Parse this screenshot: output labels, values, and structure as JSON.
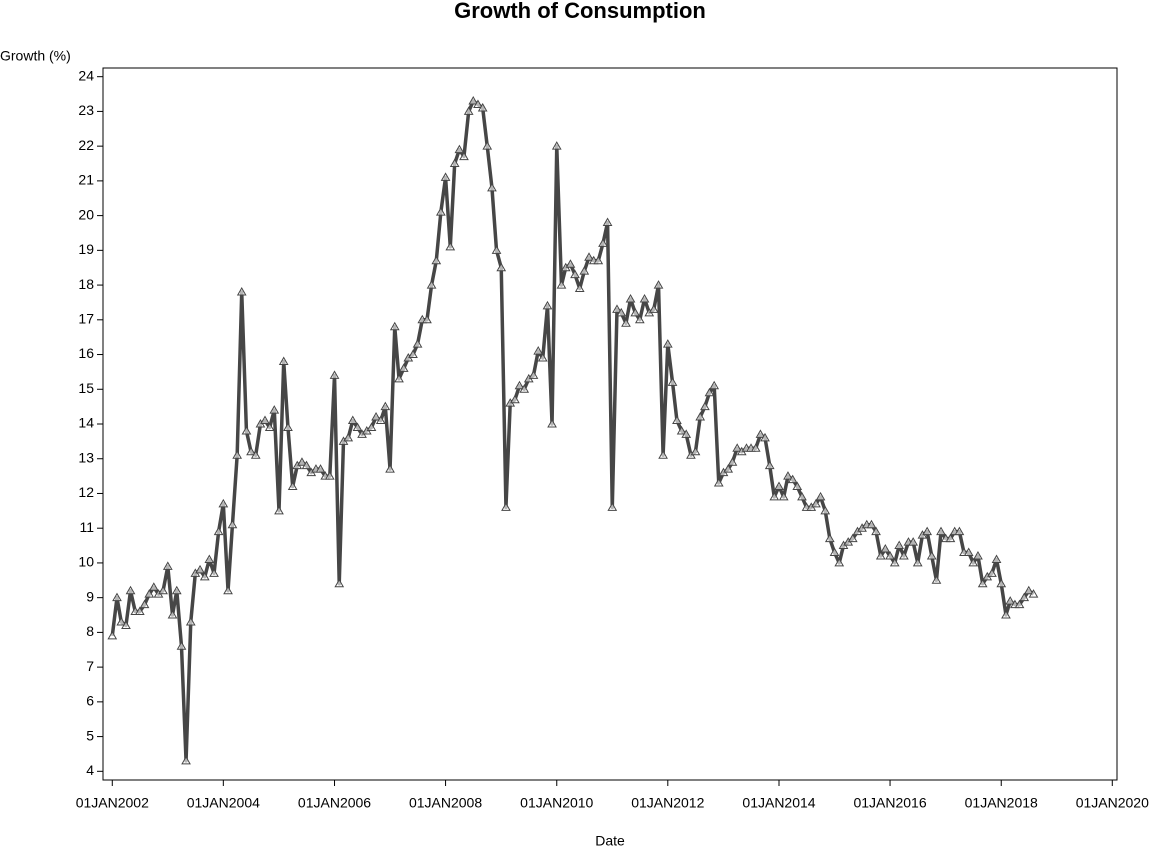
{
  "chart_data": {
    "type": "line",
    "title": "Growth of Consumption",
    "x_label": "Date",
    "y_label": "Growth (%)",
    "color": "#464646",
    "x": [
      "2002-01-01",
      "2002-02-01",
      "2002-03-01",
      "2002-04-01",
      "2002-05-01",
      "2002-06-01",
      "2002-07-01",
      "2002-08-01",
      "2002-09-01",
      "2002-10-01",
      "2002-11-01",
      "2002-12-01",
      "2003-01-01",
      "2003-02-01",
      "2003-03-01",
      "2003-04-01",
      "2003-05-01",
      "2003-06-01",
      "2003-07-01",
      "2003-08-01",
      "2003-09-01",
      "2003-10-01",
      "2003-11-01",
      "2003-12-01",
      "2004-01-01",
      "2004-02-01",
      "2004-03-01",
      "2004-04-01",
      "2004-05-01",
      "2004-06-01",
      "2004-07-01",
      "2004-08-01",
      "2004-09-01",
      "2004-10-01",
      "2004-11-01",
      "2004-12-01",
      "2005-01-01",
      "2005-02-01",
      "2005-03-01",
      "2005-04-01",
      "2005-05-01",
      "2005-06-01",
      "2005-07-01",
      "2005-08-01",
      "2005-09-01",
      "2005-10-01",
      "2005-11-01",
      "2005-12-01",
      "2006-01-01",
      "2006-02-01",
      "2006-03-01",
      "2006-04-01",
      "2006-05-01",
      "2006-06-01",
      "2006-07-01",
      "2006-08-01",
      "2006-09-01",
      "2006-10-01",
      "2006-11-01",
      "2006-12-01",
      "2007-01-01",
      "2007-02-01",
      "2007-03-01",
      "2007-04-01",
      "2007-05-01",
      "2007-06-01",
      "2007-07-01",
      "2007-08-01",
      "2007-09-01",
      "2007-10-01",
      "2007-11-01",
      "2007-12-01",
      "2008-01-01",
      "2008-02-01",
      "2008-03-01",
      "2008-04-01",
      "2008-05-01",
      "2008-06-01",
      "2008-07-01",
      "2008-08-01",
      "2008-09-01",
      "2008-10-01",
      "2008-11-01",
      "2008-12-01",
      "2009-01-01",
      "2009-02-01",
      "2009-03-01",
      "2009-04-01",
      "2009-05-01",
      "2009-06-01",
      "2009-07-01",
      "2009-08-01",
      "2009-09-01",
      "2009-10-01",
      "2009-11-01",
      "2009-12-01",
      "2010-01-01",
      "2010-02-01",
      "2010-03-01",
      "2010-04-01",
      "2010-05-01",
      "2010-06-01",
      "2010-07-01",
      "2010-08-01",
      "2010-09-01",
      "2010-10-01",
      "2010-11-01",
      "2010-12-01",
      "2011-01-01",
      "2011-02-01",
      "2011-03-01",
      "2011-04-01",
      "2011-05-01",
      "2011-06-01",
      "2011-07-01",
      "2011-08-01",
      "2011-09-01",
      "2011-10-01",
      "2011-11-01",
      "2011-12-01",
      "2012-01-01",
      "2012-02-01",
      "2012-03-01",
      "2012-04-01",
      "2012-05-01",
      "2012-06-01",
      "2012-07-01",
      "2012-08-01",
      "2012-09-01",
      "2012-10-01",
      "2012-11-01",
      "2012-12-01",
      "2013-01-01",
      "2013-02-01",
      "2013-03-01",
      "2013-04-01",
      "2013-05-01",
      "2013-06-01",
      "2013-07-01",
      "2013-08-01",
      "2013-09-01",
      "2013-10-01",
      "2013-11-01",
      "2013-12-01",
      "2014-01-01",
      "2014-02-01",
      "2014-03-01",
      "2014-04-01",
      "2014-05-01",
      "2014-06-01",
      "2014-07-01",
      "2014-08-01",
      "2014-09-01",
      "2014-10-01",
      "2014-11-01",
      "2014-12-01",
      "2015-01-01",
      "2015-02-01",
      "2015-03-01",
      "2015-04-01",
      "2015-05-01",
      "2015-06-01",
      "2015-07-01",
      "2015-08-01",
      "2015-09-01",
      "2015-10-01",
      "2015-11-01",
      "2015-12-01",
      "2016-01-01",
      "2016-02-01",
      "2016-03-01",
      "2016-04-01",
      "2016-05-01",
      "2016-06-01",
      "2016-07-01",
      "2016-08-01",
      "2016-09-01",
      "2016-10-01",
      "2016-11-01",
      "2016-12-01",
      "2017-01-01",
      "2017-02-01",
      "2017-03-01",
      "2017-04-01",
      "2017-05-01",
      "2017-06-01",
      "2017-07-01",
      "2017-08-01",
      "2017-09-01",
      "2017-10-01",
      "2017-11-01",
      "2017-12-01",
      "2018-01-01",
      "2018-02-01",
      "2018-03-01",
      "2018-04-01",
      "2018-05-01",
      "2018-06-01",
      "2018-07-01",
      "2018-08-01"
    ],
    "values": [
      7.9,
      9.0,
      8.3,
      8.2,
      9.2,
      8.6,
      8.6,
      8.8,
      9.1,
      9.3,
      9.1,
      9.2,
      9.9,
      8.5,
      9.2,
      7.6,
      4.3,
      8.3,
      9.7,
      9.8,
      9.6,
      10.1,
      9.7,
      10.9,
      11.7,
      9.2,
      11.1,
      13.1,
      17.8,
      13.8,
      13.2,
      13.1,
      14.0,
      14.1,
      13.9,
      14.4,
      11.5,
      15.8,
      13.9,
      12.2,
      12.8,
      12.9,
      12.8,
      12.6,
      12.7,
      12.7,
      12.5,
      12.5,
      15.4,
      9.4,
      13.5,
      13.6,
      14.1,
      13.9,
      13.7,
      13.8,
      13.9,
      14.2,
      14.1,
      14.5,
      12.7,
      16.8,
      15.3,
      15.6,
      15.9,
      16.0,
      16.3,
      17.0,
      17.0,
      18.0,
      18.7,
      20.1,
      21.1,
      19.1,
      21.5,
      21.9,
      21.7,
      23.0,
      23.3,
      23.2,
      23.1,
      22.0,
      20.8,
      19.0,
      18.5,
      11.6,
      14.6,
      14.7,
      15.1,
      15.0,
      15.3,
      15.4,
      16.1,
      15.9,
      17.4,
      14.0,
      22.0,
      18.0,
      18.5,
      18.6,
      18.3,
      17.9,
      18.4,
      18.8,
      18.7,
      18.7,
      19.2,
      19.8,
      11.6,
      17.3,
      17.2,
      16.9,
      17.6,
      17.2,
      17.0,
      17.6,
      17.2,
      17.3,
      18.0,
      13.1,
      16.3,
      15.2,
      14.1,
      13.8,
      13.7,
      13.1,
      13.2,
      14.2,
      14.5,
      14.9,
      15.1,
      12.3,
      12.6,
      12.7,
      12.9,
      13.3,
      13.2,
      13.3,
      13.3,
      13.3,
      13.7,
      13.6,
      12.8,
      11.9,
      12.2,
      11.9,
      12.5,
      12.4,
      12.2,
      11.9,
      11.6,
      11.6,
      11.7,
      11.9,
      11.5,
      10.7,
      10.3,
      10.0,
      10.5,
      10.6,
      10.7,
      10.9,
      11.0,
      11.1,
      11.1,
      10.9,
      10.2,
      10.4,
      10.2,
      10.0,
      10.5,
      10.2,
      10.6,
      10.6,
      10.0,
      10.8,
      10.9,
      10.2,
      9.5,
      10.9,
      10.7,
      10.7,
      10.9,
      10.9,
      10.3,
      10.3,
      10.0,
      10.2,
      9.4,
      9.6,
      9.7,
      10.1,
      9.4,
      8.5,
      8.9,
      8.8,
      8.8,
      9.0,
      9.2,
      9.1
    ],
    "xlim": [
      "2001-11-01",
      "2020-02-01"
    ],
    "xticks": [
      {
        "value": "2002-01-01",
        "label": "01JAN2002"
      },
      {
        "value": "2004-01-01",
        "label": "01JAN2004"
      },
      {
        "value": "2006-01-01",
        "label": "01JAN2006"
      },
      {
        "value": "2008-01-01",
        "label": "01JAN2008"
      },
      {
        "value": "2010-01-01",
        "label": "01JAN2010"
      },
      {
        "value": "2012-01-01",
        "label": "01JAN2012"
      },
      {
        "value": "2014-01-01",
        "label": "01JAN2014"
      },
      {
        "value": "2016-01-01",
        "label": "01JAN2016"
      },
      {
        "value": "2018-01-01",
        "label": "01JAN2018"
      },
      {
        "value": "2020-01-01",
        "label": "01JAN2020"
      }
    ],
    "ylim": [
      3.75,
      24.25
    ],
    "yticks": [
      4,
      5,
      6,
      7,
      8,
      9,
      10,
      11,
      12,
      13,
      14,
      15,
      16,
      17,
      18,
      19,
      20,
      21,
      22,
      23,
      24
    ],
    "grid": false
  }
}
